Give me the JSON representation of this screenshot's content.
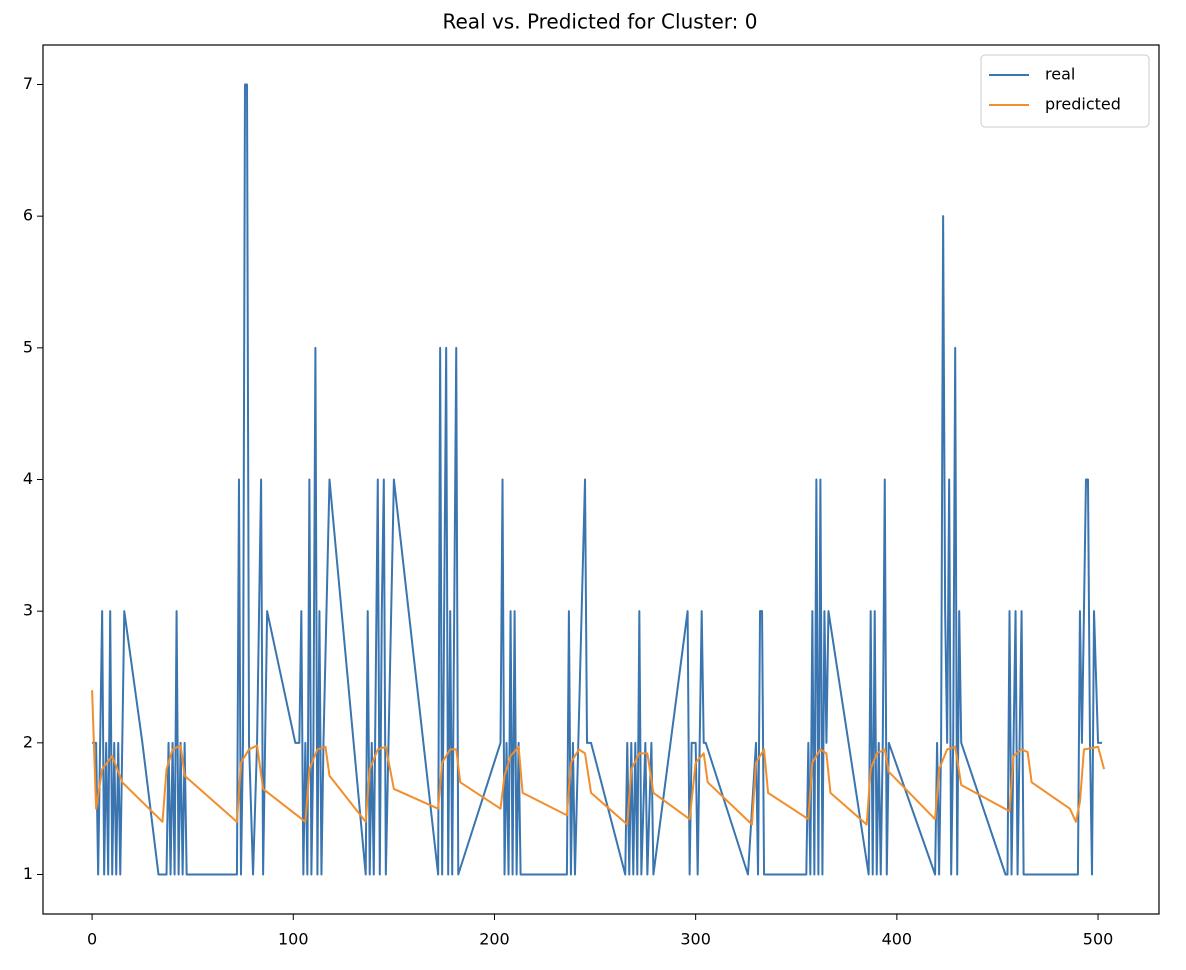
{
  "chart_data": {
    "type": "line",
    "title": "Real vs. Predicted for Cluster: 0",
    "xlim": [
      -24.4,
      530.3
    ],
    "ylim": [
      0.7,
      7.3
    ],
    "xticks": [
      0,
      100,
      200,
      300,
      400,
      500
    ],
    "yticks": [
      1,
      2,
      3,
      4,
      5,
      6,
      7
    ],
    "legend": "upper right",
    "series": [
      {
        "name": "real",
        "color": "#3a75b0",
        "x": [
          0,
          2,
          3,
          4,
          5,
          6,
          7,
          8,
          9,
          10,
          11,
          12,
          13,
          14,
          15,
          16,
          25,
          33,
          37,
          38,
          39,
          40,
          41,
          42,
          43,
          44,
          45,
          46,
          47,
          72,
          73,
          74,
          75,
          76,
          77,
          78,
          80,
          82,
          84,
          85,
          87,
          101,
          103,
          104,
          105,
          106,
          107,
          108,
          109,
          110,
          111,
          112,
          113,
          114,
          115,
          118,
          136,
          137,
          138,
          139,
          140,
          142,
          143,
          144,
          145,
          146,
          150,
          172,
          173,
          174,
          176,
          177,
          178,
          179,
          181,
          182,
          203,
          204,
          205,
          206,
          207,
          208,
          209,
          210,
          211,
          212,
          213,
          236,
          237,
          238,
          239,
          240,
          245,
          246,
          248,
          265,
          266,
          267,
          268,
          269,
          270,
          271,
          272,
          273,
          275,
          276,
          278,
          279,
          296,
          297,
          298,
          300,
          301,
          303,
          304,
          305,
          326,
          330,
          331,
          332,
          333,
          334,
          355,
          356,
          357,
          358,
          359,
          360,
          361,
          362,
          363,
          364,
          365,
          366,
          386,
          387,
          388,
          389,
          390,
          391,
          392,
          393,
          394,
          395,
          396,
          419,
          420,
          421,
          422,
          423,
          424,
          425,
          426,
          427,
          428,
          429,
          430,
          431,
          432,
          454,
          455,
          456,
          457,
          458,
          459,
          460,
          461,
          462,
          463,
          488,
          490,
          491,
          492,
          494,
          495,
          496,
          497,
          498,
          500,
          502
        ],
        "values": [
          2,
          2,
          1,
          2,
          3,
          1,
          2,
          1,
          3,
          1,
          2,
          1,
          2,
          1,
          2,
          3,
          2,
          1,
          1,
          2,
          1,
          2,
          1,
          3,
          1,
          2,
          1,
          2,
          1,
          1,
          4,
          1,
          2,
          7,
          7,
          2,
          1,
          2,
          4,
          1,
          3,
          2,
          2,
          3,
          1,
          2,
          1,
          4,
          1,
          2,
          5,
          1,
          3,
          1,
          2,
          4,
          1,
          3,
          1,
          2,
          1,
          4,
          1,
          3,
          4,
          1,
          4,
          1,
          5,
          1,
          5,
          1,
          3,
          1,
          5,
          1,
          2,
          4,
          1,
          2,
          1,
          3,
          1,
          3,
          1,
          2,
          1,
          1,
          3,
          1,
          2,
          1,
          4,
          2,
          2,
          1,
          2,
          1,
          2,
          1,
          2,
          1,
          3,
          1,
          2,
          1,
          2,
          1,
          3,
          1,
          2,
          2,
          1,
          3,
          2,
          2,
          1,
          2,
          1,
          3,
          3,
          1,
          1,
          2,
          1,
          3,
          1,
          4,
          1,
          4,
          1,
          3,
          2,
          3,
          1,
          3,
          1,
          3,
          1,
          2,
          1,
          2,
          4,
          1,
          2,
          1,
          2,
          1,
          2,
          6,
          3,
          2,
          4,
          1,
          2,
          5,
          1,
          3,
          2,
          1,
          1,
          3,
          1,
          2,
          3,
          1,
          2,
          3,
          1,
          1,
          1,
          3,
          2,
          4,
          4,
          2,
          1,
          3,
          2,
          2
        ]
      },
      {
        "name": "predicted",
        "color": "#f28e2b",
        "x": [
          0,
          2,
          5,
          10,
          15,
          35,
          37,
          40,
          44,
          46,
          72,
          74,
          78,
          82,
          85,
          106,
          108,
          112,
          116,
          118,
          136,
          138,
          142,
          146,
          150,
          172,
          174,
          178,
          181,
          183,
          203,
          205,
          208,
          212,
          214,
          236,
          238,
          242,
          245,
          248,
          266,
          268,
          272,
          276,
          279,
          297,
          300,
          304,
          306,
          328,
          330,
          334,
          336,
          356,
          358,
          362,
          365,
          367,
          385,
          387,
          390,
          394,
          396,
          419,
          421,
          425,
          429,
          432,
          456,
          458,
          462,
          465,
          467,
          486,
          489,
          491,
          493,
          497,
          500,
          503
        ],
        "values": [
          2.4,
          1.5,
          1.8,
          1.9,
          1.7,
          1.4,
          1.8,
          1.95,
          1.98,
          1.75,
          1.4,
          1.85,
          1.95,
          1.98,
          1.65,
          1.4,
          1.8,
          1.95,
          1.97,
          1.75,
          1.4,
          1.8,
          1.95,
          1.97,
          1.65,
          1.5,
          1.85,
          1.95,
          1.95,
          1.7,
          1.5,
          1.75,
          1.9,
          1.97,
          1.62,
          1.45,
          1.85,
          1.95,
          1.92,
          1.62,
          1.38,
          1.8,
          1.92,
          1.92,
          1.62,
          1.42,
          1.85,
          1.92,
          1.7,
          1.38,
          1.85,
          1.95,
          1.62,
          1.42,
          1.85,
          1.95,
          1.92,
          1.62,
          1.38,
          1.8,
          1.92,
          1.95,
          1.78,
          1.42,
          1.8,
          1.95,
          1.97,
          1.68,
          1.48,
          1.9,
          1.95,
          1.93,
          1.7,
          1.5,
          1.4,
          1.55,
          1.95,
          1.96,
          1.97,
          1.8
        ]
      }
    ]
  }
}
